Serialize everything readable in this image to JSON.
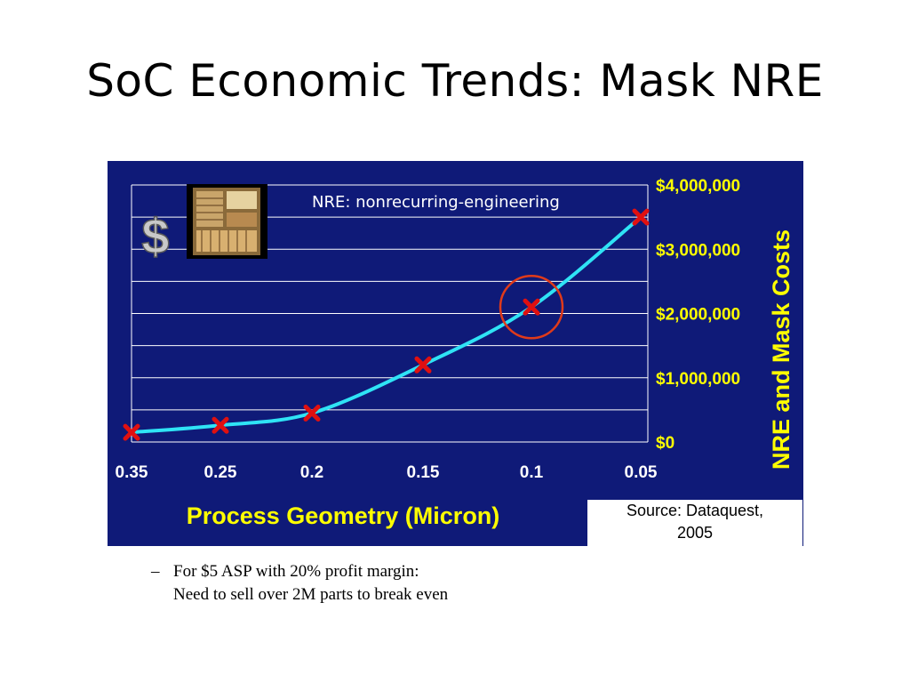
{
  "slide": {
    "title": "SoC Economic Trends: Mask NRE"
  },
  "figure": {
    "nre_note": "NRE: nonrecurring-engineering",
    "dollar_sign": "$",
    "source_line1": "Source: Dataquest,",
    "source_line2": "2005"
  },
  "notes": {
    "dash": "–",
    "line1": "For $5 ASP with 20% profit margin:",
    "line2": "Need to sell over 2M parts to break even"
  },
  "colors": {
    "panel": "#0f1a78",
    "curve": "#2fe3f5",
    "marker": "#e01010",
    "highlight_circle": "#e03a1a",
    "axis_text": "#ffff00"
  },
  "chart_data": {
    "type": "line",
    "title": "",
    "xlabel": "Process Geometry (Micron)",
    "ylabel": "NRE and Mask Costs",
    "x": [
      0.35,
      0.25,
      0.2,
      0.15,
      0.1,
      0.05
    ],
    "x_tick_labels": [
      "0.35",
      "0.25",
      "0.2",
      "0.15",
      "0.1",
      "0.05"
    ],
    "x_reversed": true,
    "y_axis_side": "right",
    "ylim": [
      0,
      4000000
    ],
    "y_tick_values": [
      0,
      1000000,
      2000000,
      3000000,
      4000000
    ],
    "y_tick_labels": [
      "$0",
      "$1,000,000",
      "$2,000,000",
      "$3,000,000",
      "$4,000,000"
    ],
    "grid": true,
    "series": [
      {
        "values": [
          150000,
          260000,
          450000,
          1200000,
          2100000,
          3500000
        ]
      }
    ],
    "highlighted_x": 0.1
  }
}
